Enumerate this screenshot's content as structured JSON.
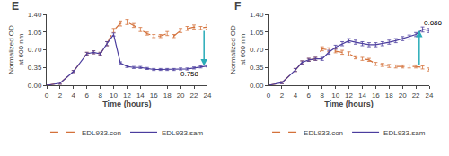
{
  "chart_data": [
    {
      "type": "line",
      "title": "E",
      "x": [
        0,
        2,
        4,
        6,
        7,
        8,
        9,
        10,
        11,
        12,
        13,
        14,
        15,
        16,
        17,
        18,
        19,
        20,
        21,
        22,
        23,
        24
      ],
      "series": [
        {
          "name": "EDL933.con",
          "color": "#D4713A",
          "line_style": "dashed",
          "values": [
            0.0,
            0.04,
            0.27,
            0.62,
            0.65,
            0.62,
            0.82,
            1.08,
            1.22,
            1.25,
            1.18,
            1.1,
            1.02,
            0.97,
            0.97,
            1.02,
            0.97,
            1.08,
            1.12,
            1.15,
            1.13,
            1.15
          ],
          "errors": [
            0.0,
            0.02,
            0.02,
            0.03,
            0.03,
            0.03,
            0.04,
            0.04,
            0.05,
            0.05,
            0.04,
            0.04,
            0.03,
            0.03,
            0.03,
            0.04,
            0.03,
            0.04,
            0.04,
            0.04,
            0.03,
            0.04
          ]
        },
        {
          "name": "EDL933.sam",
          "color": "#4B3D9E",
          "line_style": "solid",
          "values": [
            0.0,
            0.04,
            0.27,
            0.62,
            0.65,
            0.62,
            0.82,
            1.0,
            0.44,
            0.37,
            0.35,
            0.35,
            0.33,
            0.31,
            0.31,
            0.31,
            0.31,
            0.32,
            0.32,
            0.34,
            0.36,
            0.38
          ],
          "errors": [
            0.0,
            0.02,
            0.02,
            0.03,
            0.03,
            0.03,
            0.04,
            0.03,
            0.02,
            0.02,
            0.02,
            0.02,
            0.02,
            0.02,
            0.02,
            0.02,
            0.02,
            0.02,
            0.02,
            0.02,
            0.02,
            0.02
          ]
        }
      ],
      "annotations": [
        {
          "text": "0.758",
          "x": 23.5,
          "y_from": 1.1,
          "y_to": 0.38,
          "color": "#2AACB8"
        }
      ],
      "xlabel": "Time (hours)",
      "ylabel": "Normalized OD\nat 600 nm",
      "xlim": [
        0,
        24
      ],
      "xticks": [
        0,
        2,
        4,
        6,
        8,
        10,
        12,
        14,
        16,
        18,
        20,
        22,
        24
      ],
      "ylim": [
        0,
        1.4
      ],
      "yticks": [
        {
          "value": 0,
          "label": "0.00"
        },
        0.35,
        {
          "value": 0.7,
          "label": "0.70"
        },
        1.05,
        {
          "value": 1.4,
          "label": "1.40"
        }
      ],
      "grid": false,
      "legend": "bottom"
    },
    {
      "type": "line",
      "title": "F",
      "x": [
        0,
        2,
        4,
        5,
        6,
        7,
        8,
        9,
        10,
        11,
        12,
        13,
        14,
        15,
        16,
        17,
        18,
        19,
        20,
        21,
        22,
        23,
        24
      ],
      "series": [
        {
          "name": "EDL933.con",
          "color": "#D4713A",
          "line_style": "dashed",
          "values": [
            0.0,
            0.05,
            0.3,
            0.45,
            0.5,
            0.52,
            0.72,
            0.7,
            0.68,
            0.65,
            0.62,
            0.55,
            0.52,
            0.5,
            0.42,
            0.4,
            0.38,
            0.37,
            0.37,
            0.37,
            0.37,
            0.35,
            0.31
          ],
          "errors": [
            0.0,
            0.02,
            0.03,
            0.03,
            0.03,
            0.03,
            0.04,
            0.04,
            0.04,
            0.04,
            0.04,
            0.03,
            0.03,
            0.03,
            0.03,
            0.03,
            0.03,
            0.03,
            0.03,
            0.03,
            0.03,
            0.03,
            0.03
          ]
        },
        {
          "name": "EDL933.sam",
          "color": "#4B3D9E",
          "line_style": "solid",
          "values": [
            0.0,
            0.05,
            0.3,
            0.45,
            0.5,
            0.52,
            0.52,
            0.65,
            0.75,
            0.82,
            0.88,
            0.85,
            0.82,
            0.8,
            0.8,
            0.82,
            0.85,
            0.88,
            0.92,
            0.95,
            1.0,
            1.1,
            1.08
          ],
          "errors": [
            0.0,
            0.02,
            0.03,
            0.03,
            0.03,
            0.03,
            0.03,
            0.04,
            0.04,
            0.04,
            0.04,
            0.04,
            0.04,
            0.04,
            0.04,
            0.04,
            0.04,
            0.04,
            0.04,
            0.04,
            0.04,
            0.05,
            0.04
          ]
        }
      ],
      "annotations": [
        {
          "text": "0.686",
          "x": 22.5,
          "y_from": 0.37,
          "y_to": 1.08,
          "color": "#2AACB8"
        }
      ],
      "xlabel": "Time (hours)",
      "ylabel": "Normalized OD\nat 600 nm",
      "xlim": [
        0,
        24
      ],
      "xticks": [
        0,
        2,
        4,
        6,
        8,
        10,
        12,
        14,
        16,
        18,
        20,
        22,
        24
      ],
      "ylim": [
        0,
        1.4
      ],
      "yticks": [
        {
          "value": 0,
          "label": "0.00"
        },
        0.35,
        {
          "value": 0.7,
          "label": "0.70"
        },
        1.05,
        {
          "value": 1.4,
          "label": "1.40"
        }
      ],
      "grid": false,
      "legend": "bottom"
    }
  ]
}
